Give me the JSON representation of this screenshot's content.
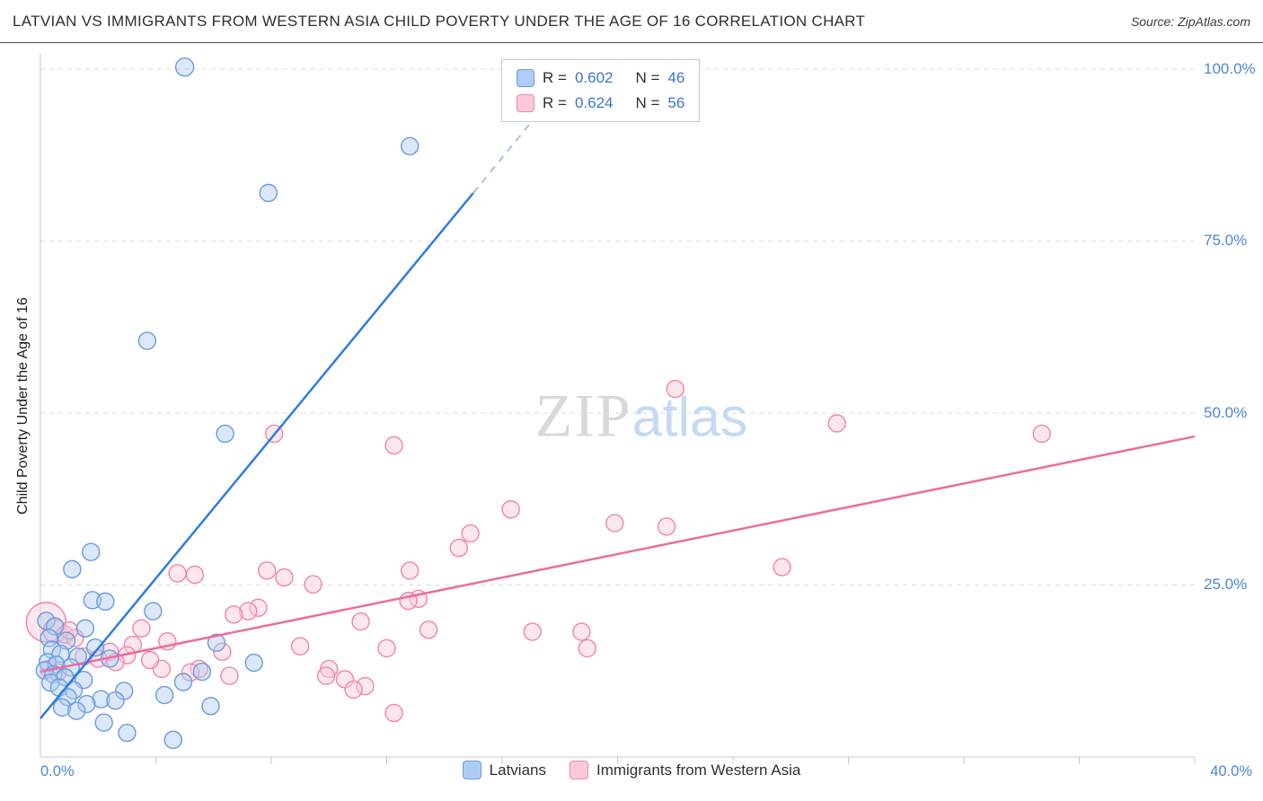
{
  "header": {
    "title": "LATVIAN VS IMMIGRANTS FROM WESTERN ASIA CHILD POVERTY UNDER THE AGE OF 16 CORRELATION CHART",
    "source": "Source: ZipAtlas.com"
  },
  "watermark": {
    "zip": "ZIP",
    "atlas": "atlas"
  },
  "axes": {
    "y_label": "Child Poverty Under the Age of 16",
    "y_ticks": [
      "100.0%",
      "75.0%",
      "50.0%",
      "25.0%"
    ],
    "x_min_label": "0.0%",
    "x_max_label": "40.0%"
  },
  "legend_box": {
    "rows": [
      {
        "r_label": "R =",
        "r_value": "0.602",
        "n_label": "N =",
        "n_value": "46"
      },
      {
        "r_label": "R =",
        "r_value": "0.624",
        "n_label": "N =",
        "n_value": "56"
      }
    ]
  },
  "bottom_legend": {
    "items": [
      {
        "label": "Latvians"
      },
      {
        "label": "Immigrants from Western Asia"
      }
    ]
  },
  "chart_data": {
    "type": "scatter",
    "title": "Latvian vs Immigrants from Western Asia Child Poverty Under the Age of 16 Correlation Chart",
    "xlabel": "",
    "ylabel": "Child Poverty Under the Age of 16",
    "xlim": [
      0,
      40
    ],
    "ylim": [
      0,
      105
    ],
    "grid_y": [
      25,
      50,
      75,
      100
    ],
    "x_tick_step": 4,
    "point_radius": 9.5,
    "colors": {
      "grid": "#dcdcdc",
      "axis": "#c8c8c8",
      "tick_label": "#4b87d9",
      "dashed_extension": "#aebfd8"
    },
    "series": [
      {
        "name": "Latvians",
        "R": 0.602,
        "N": 46,
        "fill": "#aecdf5",
        "stroke": "#6b9ae0",
        "points": [
          [
            5.0,
            100.3,
            10
          ],
          [
            12.8,
            88.8
          ],
          [
            7.9,
            82.0
          ],
          [
            3.7,
            60.5
          ],
          [
            6.4,
            47.0
          ],
          [
            1.1,
            27.3
          ],
          [
            1.75,
            29.8
          ],
          [
            1.8,
            22.8
          ],
          [
            2.25,
            22.6
          ],
          [
            3.9,
            21.2
          ],
          [
            0.2,
            19.8
          ],
          [
            0.5,
            19.0
          ],
          [
            1.55,
            18.7
          ],
          [
            0.3,
            17.3
          ],
          [
            0.9,
            16.9
          ],
          [
            1.9,
            15.9
          ],
          [
            0.4,
            15.6
          ],
          [
            0.7,
            15.0
          ],
          [
            1.3,
            14.6
          ],
          [
            2.4,
            14.3
          ],
          [
            0.25,
            13.8
          ],
          [
            0.55,
            13.4
          ],
          [
            1.05,
            13.0
          ],
          [
            0.15,
            12.6
          ],
          [
            0.45,
            12.0
          ],
          [
            0.85,
            11.6
          ],
          [
            1.5,
            11.2
          ],
          [
            0.35,
            10.8
          ],
          [
            5.6,
            12.4
          ],
          [
            4.95,
            10.9
          ],
          [
            6.1,
            16.6
          ],
          [
            7.4,
            13.7
          ],
          [
            0.65,
            10.1
          ],
          [
            1.15,
            9.7
          ],
          [
            2.9,
            9.6
          ],
          [
            4.3,
            9.0
          ],
          [
            0.95,
            8.7
          ],
          [
            2.1,
            8.4
          ],
          [
            2.6,
            8.2
          ],
          [
            1.6,
            7.7
          ],
          [
            0.75,
            7.2
          ],
          [
            1.25,
            6.7
          ],
          [
            5.9,
            7.4
          ],
          [
            2.2,
            5.0
          ],
          [
            3.0,
            3.5
          ],
          [
            4.6,
            2.5
          ]
        ]
      },
      {
        "name": "Immigrants from Western Asia",
        "R": 0.624,
        "N": 56,
        "fill": "#fbc9da",
        "stroke": "#ef84ab",
        "points": [
          [
            0.2,
            19.6,
            22
          ],
          [
            0.5,
            18.3,
            13
          ],
          [
            22.0,
            53.5
          ],
          [
            27.6,
            48.5
          ],
          [
            34.7,
            47.0
          ],
          [
            8.1,
            47.0
          ],
          [
            12.25,
            45.3
          ],
          [
            16.3,
            36.0
          ],
          [
            19.9,
            34.0
          ],
          [
            21.7,
            33.5
          ],
          [
            14.9,
            32.5
          ],
          [
            14.5,
            30.4
          ],
          [
            25.7,
            27.6
          ],
          [
            12.8,
            27.1
          ],
          [
            4.75,
            26.7
          ],
          [
            5.35,
            26.5
          ],
          [
            7.85,
            27.1
          ],
          [
            8.45,
            26.1
          ],
          [
            9.45,
            25.1
          ],
          [
            13.1,
            23.0
          ],
          [
            12.75,
            22.7
          ],
          [
            7.55,
            21.7
          ],
          [
            7.2,
            21.2
          ],
          [
            6.7,
            20.7
          ],
          [
            11.1,
            19.7
          ],
          [
            13.45,
            18.5
          ],
          [
            17.05,
            18.2
          ],
          [
            18.75,
            18.2
          ],
          [
            3.5,
            18.7
          ],
          [
            0.85,
            17.8
          ],
          [
            1.2,
            17.3
          ],
          [
            4.4,
            16.8
          ],
          [
            3.2,
            16.3
          ],
          [
            2.4,
            15.3
          ],
          [
            3.0,
            14.8
          ],
          [
            1.5,
            14.6
          ],
          [
            2.0,
            14.3
          ],
          [
            12.0,
            15.8
          ],
          [
            18.95,
            15.8
          ],
          [
            6.3,
            15.3
          ],
          [
            5.5,
            12.8
          ],
          [
            6.55,
            11.8
          ],
          [
            10.0,
            12.8
          ],
          [
            9.9,
            11.8
          ],
          [
            10.55,
            11.3
          ],
          [
            11.25,
            10.3
          ],
          [
            10.85,
            9.8
          ],
          [
            5.2,
            12.3
          ],
          [
            2.6,
            13.8
          ],
          [
            4.2,
            12.8
          ],
          [
            12.25,
            6.4
          ],
          [
            0.3,
            12.8
          ],
          [
            0.6,
            12.3
          ],
          [
            1.0,
            18.4
          ],
          [
            3.8,
            14.1
          ],
          [
            9.0,
            16.1
          ]
        ]
      }
    ],
    "trend_lines": [
      {
        "series": "Latvians",
        "color": "#2e7ce0",
        "points": [
          [
            0,
            5.6
          ],
          [
            15,
            82
          ]
        ],
        "dashed_extension": [
          [
            15,
            82
          ],
          [
            17.65,
            95.6
          ]
        ]
      },
      {
        "series": "Immigrants from Western Asia",
        "color": "#ee6b9e",
        "points": [
          [
            0,
            12.4
          ],
          [
            40,
            46.6
          ]
        ]
      }
    ]
  }
}
